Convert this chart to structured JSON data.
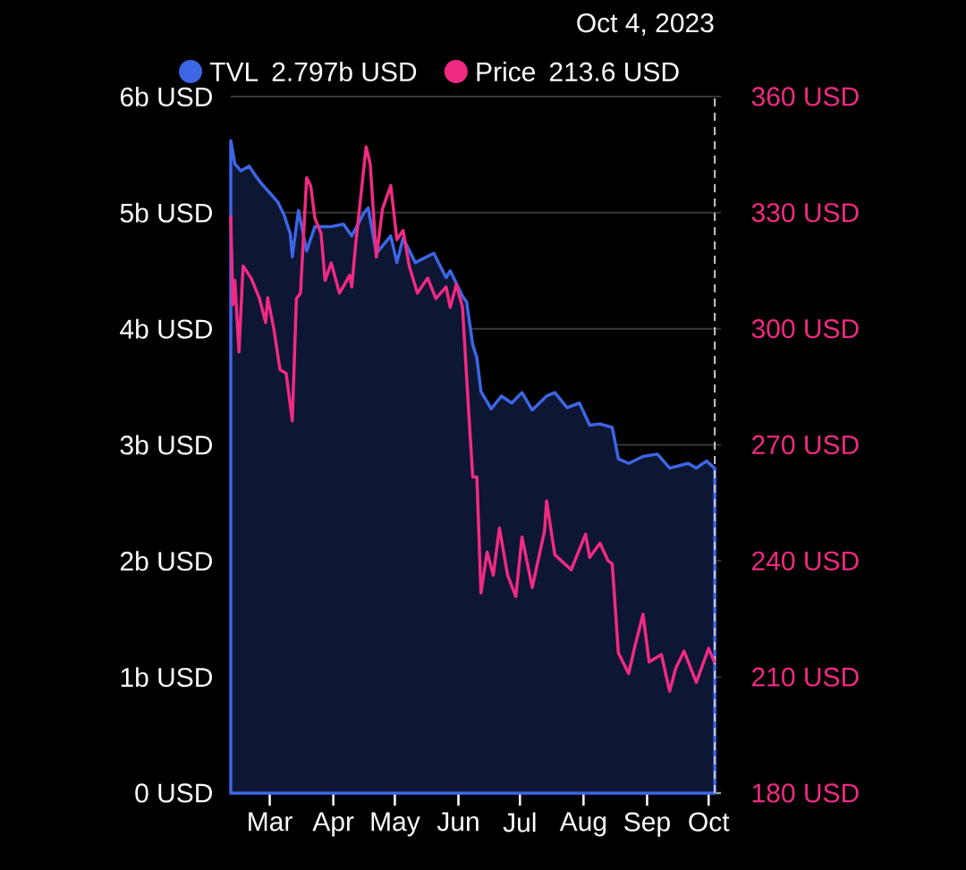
{
  "chart_data": {
    "type": "line",
    "xlim": [
      "2023-02-10",
      "2023-10-07"
    ],
    "xticks": [
      {
        "value": "2023-03-01",
        "label": "Mar"
      },
      {
        "value": "2023-04-01",
        "label": "Apr"
      },
      {
        "value": "2023-05-01",
        "label": "May"
      },
      {
        "value": "2023-06-01",
        "label": "Jun"
      },
      {
        "value": "2023-07-01",
        "label": "Jul"
      },
      {
        "value": "2023-08-01",
        "label": "Aug"
      },
      {
        "value": "2023-09-01",
        "label": "Sep"
      },
      {
        "value": "2023-10-01",
        "label": "Oct"
      }
    ],
    "ylim": [
      0,
      6
    ],
    "yticks": [
      {
        "value": 0,
        "label": "0 USD"
      },
      {
        "value": 1,
        "label": "1b USD"
      },
      {
        "value": 2,
        "label": "2b USD"
      },
      {
        "value": 3,
        "label": "3b USD"
      },
      {
        "value": 4,
        "label": "4b USD"
      },
      {
        "value": 5,
        "label": "5b USD"
      },
      {
        "value": 6,
        "label": "6b USD"
      }
    ],
    "y2lim": [
      180,
      360
    ],
    "y2ticks": [
      {
        "value": 180,
        "label": "180 USD"
      },
      {
        "value": 210,
        "label": "210 USD"
      },
      {
        "value": 240,
        "label": "240 USD"
      },
      {
        "value": 270,
        "label": "270 USD"
      },
      {
        "value": 300,
        "label": "300 USD"
      },
      {
        "value": 330,
        "label": "330 USD"
      },
      {
        "value": 360,
        "label": "360 USD"
      }
    ],
    "grid": "y",
    "legend": "top",
    "series": [
      {
        "name": "TVL",
        "type": "area",
        "color": "#3d66e6",
        "x": [
          "2023-02-10",
          "2023-02-12",
          "2023-02-15",
          "2023-02-19",
          "2023-02-22",
          "2023-02-25",
          "2023-02-28",
          "2023-03-05",
          "2023-03-08",
          "2023-03-11",
          "2023-03-12",
          "2023-03-15",
          "2023-03-19",
          "2023-03-23",
          "2023-03-31",
          "2023-04-06",
          "2023-04-10",
          "2023-04-16",
          "2023-04-18",
          "2023-04-22",
          "2023-04-29",
          "2023-05-02",
          "2023-05-05",
          "2023-05-11",
          "2023-05-20",
          "2023-05-26",
          "2023-05-28",
          "2023-06-03",
          "2023-06-05",
          "2023-06-08",
          "2023-06-10",
          "2023-06-12",
          "2023-06-17",
          "2023-06-22",
          "2023-06-27",
          "2023-07-02",
          "2023-07-07",
          "2023-07-14",
          "2023-07-18",
          "2023-07-24",
          "2023-07-30",
          "2023-08-04",
          "2023-08-09",
          "2023-08-15",
          "2023-08-18",
          "2023-08-23",
          "2023-08-30",
          "2023-09-06",
          "2023-09-12",
          "2023-09-21",
          "2023-09-25",
          "2023-09-30",
          "2023-10-04"
        ],
        "values": [
          5.62,
          5.42,
          5.36,
          5.4,
          5.32,
          5.25,
          5.19,
          5.09,
          4.98,
          4.82,
          4.62,
          5.02,
          4.67,
          4.88,
          4.88,
          4.9,
          4.8,
          5.0,
          5.04,
          4.65,
          4.8,
          4.57,
          4.78,
          4.57,
          4.65,
          4.44,
          4.5,
          4.28,
          4.23,
          3.86,
          3.75,
          3.46,
          3.31,
          3.42,
          3.36,
          3.45,
          3.3,
          3.42,
          3.45,
          3.32,
          3.36,
          3.17,
          3.18,
          3.15,
          2.88,
          2.84,
          2.9,
          2.92,
          2.8,
          2.84,
          2.8,
          2.86,
          2.797
        ]
      },
      {
        "name": "Price",
        "axis": "y2",
        "color": "#f02a82",
        "x": [
          "2023-02-10",
          "2023-02-11",
          "2023-02-12",
          "2023-02-14",
          "2023-02-16",
          "2023-02-20",
          "2023-02-24",
          "2023-02-27",
          "2023-02-28",
          "2023-03-03",
          "2023-03-06",
          "2023-03-09",
          "2023-03-12",
          "2023-03-14",
          "2023-03-16",
          "2023-03-19",
          "2023-03-21",
          "2023-03-23",
          "2023-03-26",
          "2023-03-28",
          "2023-03-31",
          "2023-04-04",
          "2023-04-09",
          "2023-04-10",
          "2023-04-12",
          "2023-04-17",
          "2023-04-19",
          "2023-04-22",
          "2023-04-25",
          "2023-04-29",
          "2023-05-02",
          "2023-05-05",
          "2023-05-08",
          "2023-05-12",
          "2023-05-17",
          "2023-05-21",
          "2023-05-26",
          "2023-05-28",
          "2023-05-31",
          "2023-06-03",
          "2023-06-06",
          "2023-06-08",
          "2023-06-10",
          "2023-06-12",
          "2023-06-15",
          "2023-06-18",
          "2023-06-21",
          "2023-06-25",
          "2023-06-29",
          "2023-07-02",
          "2023-07-07",
          "2023-07-13",
          "2023-07-14",
          "2023-07-18",
          "2023-07-26",
          "2023-08-02",
          "2023-08-04",
          "2023-08-09",
          "2023-08-13",
          "2023-08-15",
          "2023-08-18",
          "2023-08-23",
          "2023-08-26",
          "2023-08-30",
          "2023-09-02",
          "2023-09-08",
          "2023-09-12",
          "2023-09-15",
          "2023-09-19",
          "2023-09-25",
          "2023-10-01",
          "2023-10-04"
        ],
        "values": [
          329.3,
          306.2,
          312.5,
          294,
          316.2,
          313,
          307.8,
          301.6,
          308,
          300,
          289.4,
          288.5,
          276.2,
          307.8,
          309.2,
          339,
          336.9,
          328.6,
          324.7,
          312.5,
          317,
          309.2,
          313.8,
          310.8,
          322.4,
          347,
          342.5,
          318.5,
          331,
          337,
          323,
          325.4,
          316.2,
          309.2,
          313.1,
          307.8,
          310.8,
          305.5,
          311.5,
          305.5,
          278.5,
          261.7,
          261.7,
          231.7,
          242.3,
          236.3,
          248.5,
          236.3,
          230.8,
          246.2,
          233.1,
          247.8,
          255.5,
          241.6,
          237.7,
          246.9,
          240.9,
          244.6,
          240,
          239.3,
          216.2,
          210.9,
          217.8,
          226.2,
          213.9,
          215.8,
          206.3,
          212.3,
          216.7,
          208.6,
          217.4,
          213.6
        ]
      }
    ],
    "ref_lines": [
      {
        "axis": "x",
        "value": "2023-10-04",
        "label": "Oct 4, 2023",
        "color": "#c8c8d2",
        "line_style": "dashed"
      }
    ],
    "annotations": [
      "2.797b USD",
      "213.6 USD"
    ]
  }
}
